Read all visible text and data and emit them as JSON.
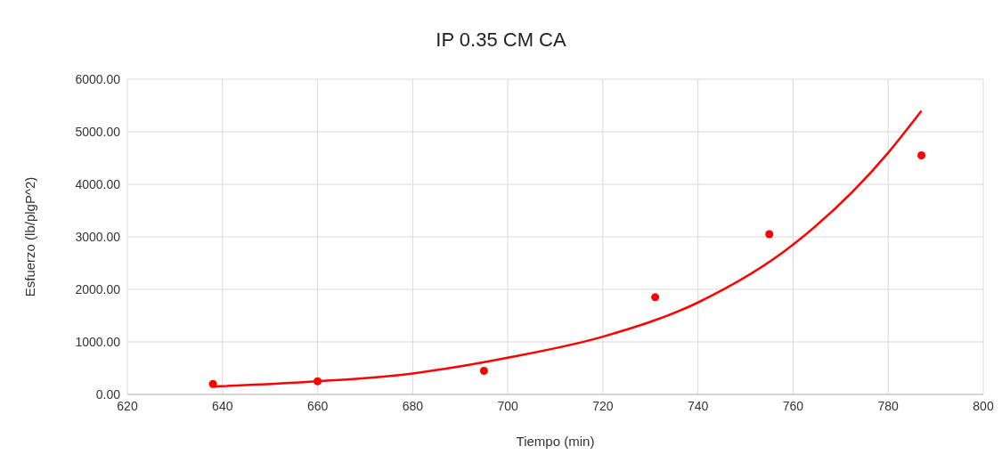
{
  "chart_data": {
    "type": "scatter",
    "title": "IP 0.35 CM CA",
    "xlabel": "Tiempo (min)",
    "ylabel": "Esfuerzo (lb/plgP^2)",
    "xlim": [
      620,
      800
    ],
    "xticks": [
      620,
      640,
      660,
      680,
      700,
      720,
      740,
      760,
      780,
      800
    ],
    "ylim": [
      0,
      6000
    ],
    "yticks": [
      {
        "value": 0,
        "label": "0.00"
      },
      {
        "value": 1000,
        "label": "1000.00"
      },
      {
        "value": 2000,
        "label": "2000.00"
      },
      {
        "value": 3000,
        "label": "3000.00"
      },
      {
        "value": 4000,
        "label": "4000.00"
      },
      {
        "value": 5000,
        "label": "5000.00"
      },
      {
        "value": 6000,
        "label": "6000.00"
      }
    ],
    "grid": true,
    "series": [
      {
        "color": "#ff0000",
        "marker": "circle",
        "x": [
          638,
          660,
          695,
          731,
          755,
          787
        ],
        "values": [
          200,
          250,
          450,
          1850,
          3050,
          4550
        ]
      },
      {
        "type": "line",
        "color": "#ff0000",
        "marker": "none",
        "line_style": "solid",
        "x": [
          638,
          660,
          680,
          700,
          720,
          740,
          760,
          780,
          787
        ],
        "values": [
          150,
          250,
          400,
          700,
          1100,
          1750,
          2850,
          4600,
          5400
        ]
      }
    ]
  }
}
